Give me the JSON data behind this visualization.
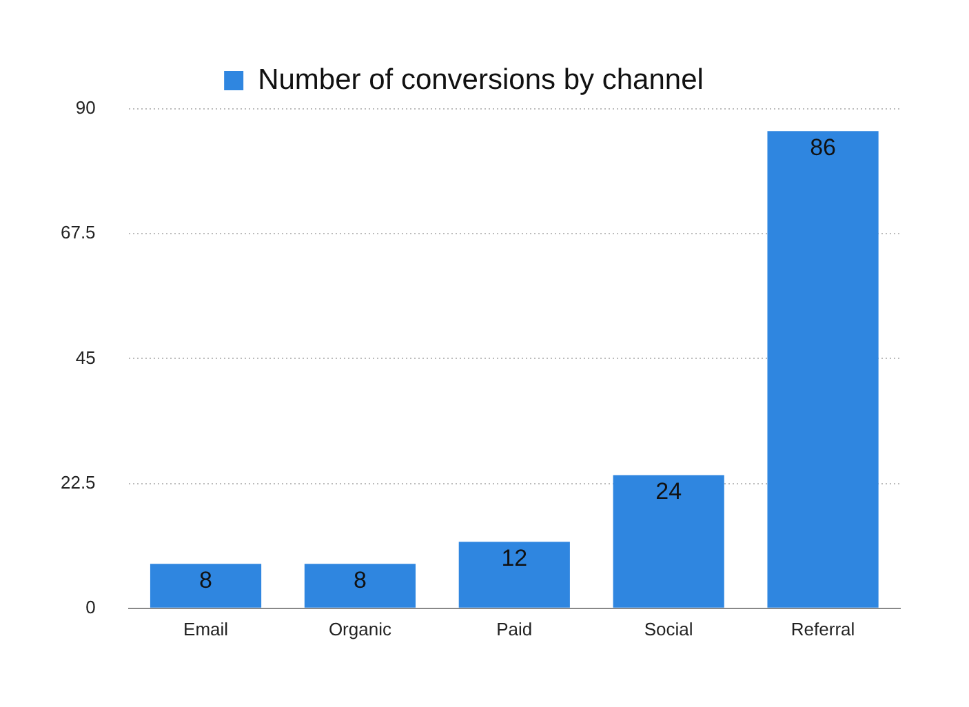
{
  "chart_data": {
    "type": "bar",
    "categories": [
      "Email",
      "Organic",
      "Paid",
      "Social",
      "Referral"
    ],
    "series": [
      {
        "name": "Number of conversions by channel",
        "color": "#2f86e0",
        "values": [
          8,
          8,
          12,
          24,
          86
        ]
      }
    ],
    "ylim": [
      0,
      90
    ],
    "yticks": [
      0,
      22.5,
      45,
      67.5,
      90
    ],
    "grid": "y",
    "legend": "top",
    "data_labels": true
  }
}
